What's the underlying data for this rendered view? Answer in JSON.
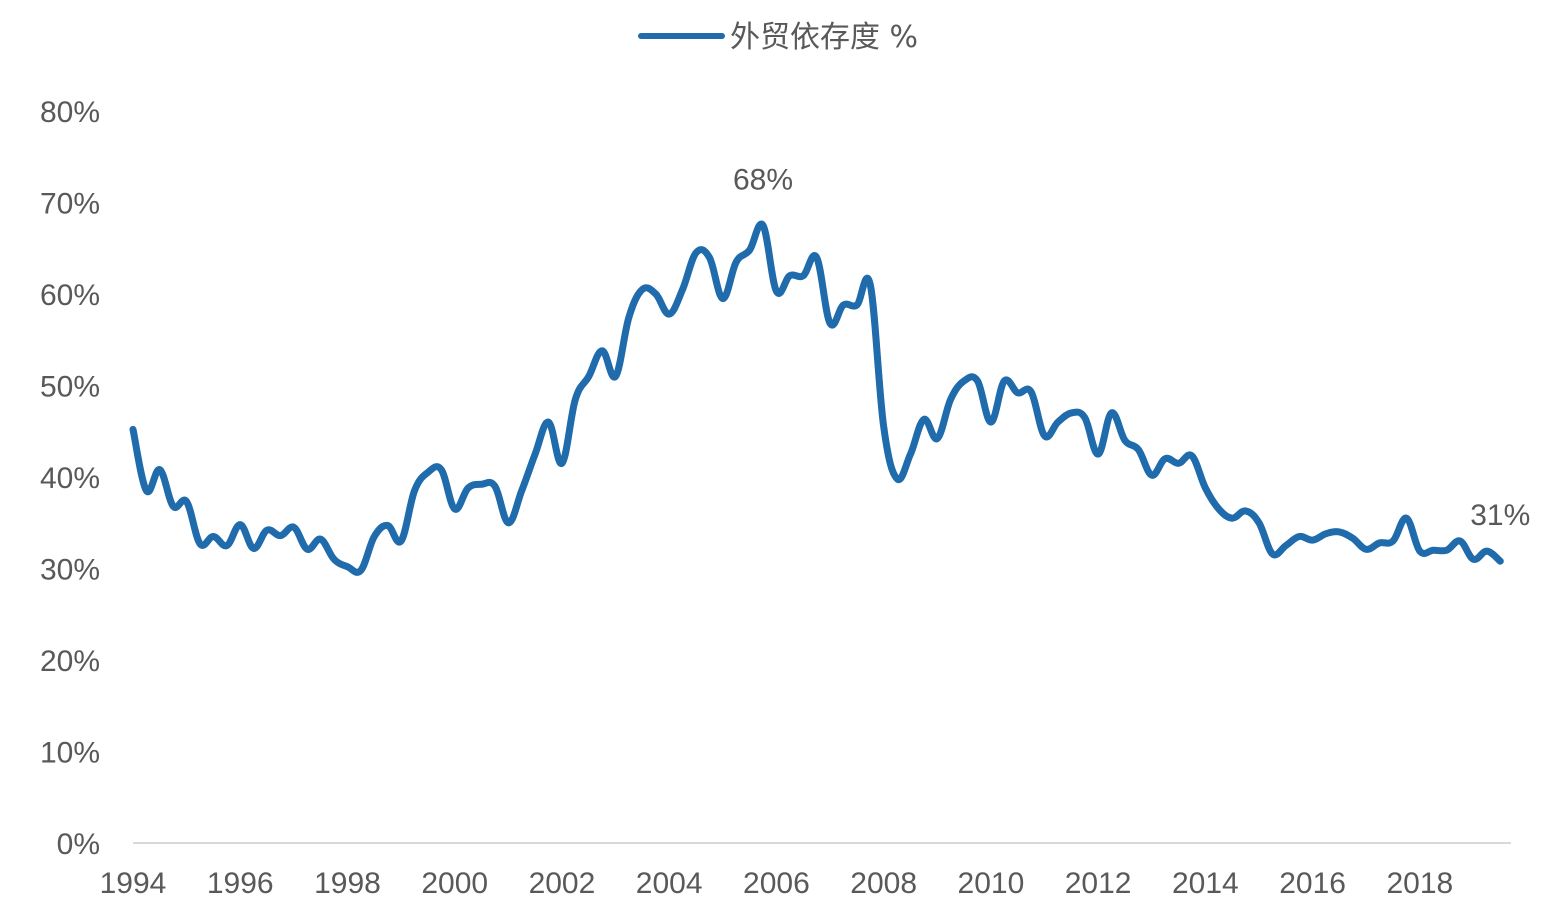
{
  "chart_data": {
    "type": "line",
    "title": "",
    "xlabel": "",
    "ylabel": "",
    "legend": {
      "position": "top-center",
      "entries": [
        "外贸依存度 %"
      ]
    },
    "grid": false,
    "colors": {
      "series": "#1f6bab",
      "axis": "#d9d9d9",
      "text": "#595959"
    },
    "xlim": [
      1994,
      2019.7
    ],
    "ylim": [
      0,
      80
    ],
    "y_ticks": [
      0,
      10,
      20,
      30,
      40,
      50,
      60,
      70,
      80
    ],
    "y_tick_labels": [
      "0%",
      "10%",
      "20%",
      "30%",
      "40%",
      "50%",
      "60%",
      "70%",
      "80%"
    ],
    "x_ticks": [
      1994,
      1996,
      1998,
      2000,
      2002,
      2004,
      2006,
      2008,
      2010,
      2012,
      2014,
      2016,
      2018
    ],
    "x_tick_labels": [
      "1994",
      "1996",
      "1998",
      "2000",
      "2002",
      "2004",
      "2006",
      "2008",
      "2010",
      "2012",
      "2014",
      "2016",
      "2018"
    ],
    "series": [
      {
        "name": "外贸依存度 %",
        "x": [
          1994.0,
          1994.25,
          1994.5,
          1994.75,
          1995.0,
          1995.25,
          1995.5,
          1995.75,
          1996.0,
          1996.25,
          1996.5,
          1996.75,
          1997.0,
          1997.25,
          1997.5,
          1997.75,
          1998.0,
          1998.25,
          1998.5,
          1998.75,
          1999.0,
          1999.25,
          1999.5,
          1999.75,
          2000.0,
          2000.25,
          2000.5,
          2000.75,
          2001.0,
          2001.25,
          2001.5,
          2001.75,
          2002.0,
          2002.25,
          2002.5,
          2002.75,
          2003.0,
          2003.25,
          2003.5,
          2003.75,
          2004.0,
          2004.25,
          2004.5,
          2004.75,
          2005.0,
          2005.25,
          2005.5,
          2005.75,
          2006.0,
          2006.25,
          2006.5,
          2006.75,
          2007.0,
          2007.25,
          2007.5,
          2007.75,
          2008.0,
          2008.25,
          2008.5,
          2008.75,
          2009.0,
          2009.25,
          2009.5,
          2009.75,
          2010.0,
          2010.25,
          2010.5,
          2010.75,
          2011.0,
          2011.25,
          2011.5,
          2011.75,
          2012.0,
          2012.25,
          2012.5,
          2012.75,
          2013.0,
          2013.25,
          2013.5,
          2013.75,
          2014.0,
          2014.25,
          2014.5,
          2014.75,
          2015.0,
          2015.25,
          2015.5,
          2015.75,
          2016.0,
          2016.25,
          2016.5,
          2016.75,
          2017.0,
          2017.25,
          2017.5,
          2017.75,
          2018.0,
          2018.25,
          2018.5,
          2018.75,
          2019.0,
          2019.25,
          2019.5
        ],
        "values": [
          45.2,
          38.5,
          40.8,
          36.8,
          37.3,
          32.7,
          33.5,
          32.5,
          34.8,
          32.2,
          34.2,
          33.6,
          34.5,
          32.1,
          33.2,
          31.0,
          30.2,
          29.8,
          33.5,
          34.7,
          33.0,
          38.5,
          40.5,
          40.8,
          36.5,
          38.8,
          39.2,
          39.0,
          35.0,
          38.5,
          42.5,
          46.0,
          41.5,
          48.5,
          51.0,
          53.8,
          51.0,
          57.5,
          60.5,
          60.0,
          57.8,
          60.5,
          64.5,
          64.0,
          59.5,
          63.5,
          64.8,
          67.5,
          60.3,
          62.0,
          62.0,
          64.0,
          56.8,
          58.8,
          58.8,
          61.0,
          45.5,
          39.8,
          42.5,
          46.3,
          44.2,
          48.5,
          50.5,
          50.5,
          46.0,
          50.5,
          49.2,
          49.3,
          44.5,
          46.0,
          47.0,
          46.5,
          42.5,
          47.0,
          44.0,
          43.0,
          40.2,
          42.0,
          41.5,
          42.3,
          38.8,
          36.5,
          35.5,
          36.3,
          35.0,
          31.6,
          32.5,
          33.5,
          33.1,
          33.8,
          34.0,
          33.3,
          32.1,
          32.8,
          33.0,
          35.5,
          31.9,
          32.0,
          32.0,
          33.0,
          31.0,
          31.9,
          30.8
        ]
      }
    ],
    "annotations": [
      {
        "text": "68%",
        "x": 2005.75,
        "y": 67.5
      },
      {
        "text": "31%",
        "x": 2019.5,
        "y": 30.8
      }
    ]
  }
}
